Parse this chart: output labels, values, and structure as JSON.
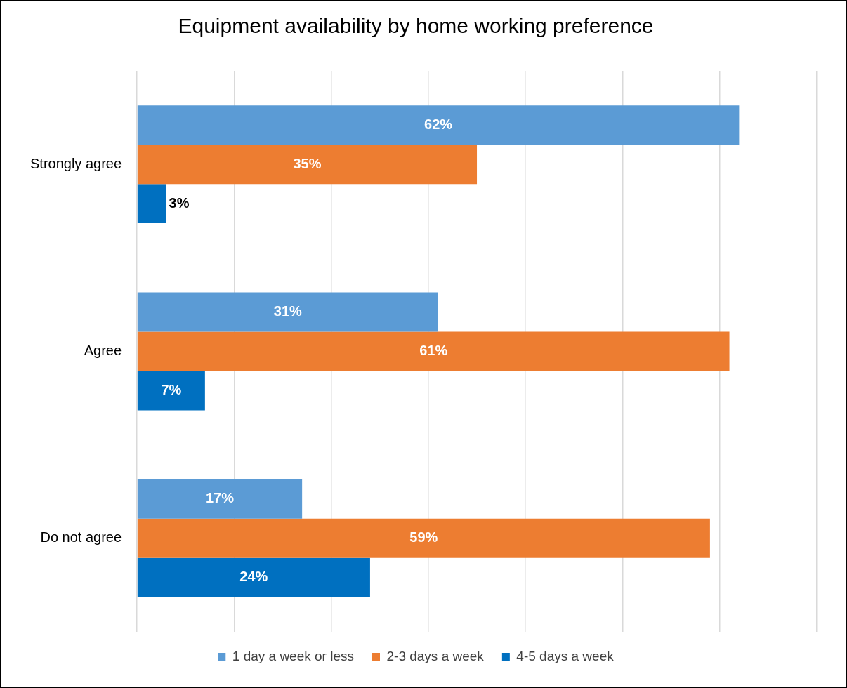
{
  "chart_data": {
    "type": "bar",
    "orientation": "horizontal",
    "title": "Equipment availability by home working preference",
    "categories": [
      "Strongly agree",
      "Agree",
      "Do not agree"
    ],
    "series": [
      {
        "name": "1 day a week or less",
        "color": "#5b9bd5",
        "values": [
          62,
          31,
          17
        ],
        "value_labels": [
          "62%",
          "31%",
          "17%"
        ]
      },
      {
        "name": "2-3 days a week",
        "color": "#ed7d31",
        "values": [
          35,
          61,
          59
        ],
        "value_labels": [
          "35%",
          "61%",
          "59%"
        ]
      },
      {
        "name": "4-5 days a week",
        "color": "#0070c0",
        "values": [
          3,
          7,
          24
        ],
        "value_labels": [
          "3%",
          "7%",
          "24%"
        ]
      }
    ],
    "tick_labels": "y",
    "grid": "x",
    "legend": "bottom"
  }
}
